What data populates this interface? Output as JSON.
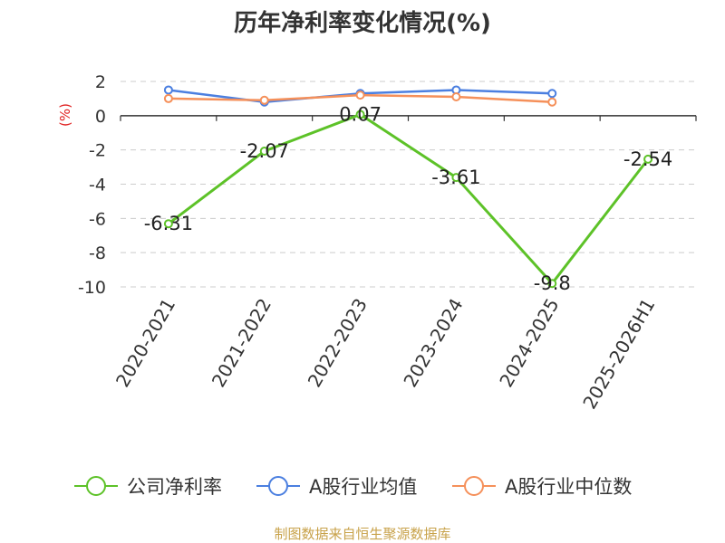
{
  "chart_data": {
    "type": "line",
    "title": "历年净利率变化情况(%)",
    "ylabel": "(%)",
    "ylim": [
      -10,
      2
    ],
    "yticks": [
      2,
      0,
      -2,
      -4,
      -6,
      -8,
      -10
    ],
    "grid": true,
    "legend_position": "bottom",
    "categories": [
      "2020-2021",
      "2021-2022",
      "2022-2023",
      "2023-2024",
      "2024-2025",
      "2025-2026H1"
    ],
    "series": [
      {
        "name": "公司净利率",
        "color": "#5dc228",
        "values": [
          -6.31,
          -2.07,
          0.07,
          -3.61,
          -9.8,
          -2.54
        ],
        "labels": [
          "-6.31",
          "-2.07",
          "0.07",
          "-3.61",
          "-9.8",
          "-2.54"
        ]
      },
      {
        "name": "A股行业均值",
        "color": "#4b7fe0",
        "values": [
          1.5,
          0.8,
          1.3,
          1.5,
          1.3,
          null
        ]
      },
      {
        "name": "A股行业中位数",
        "color": "#f5905a",
        "values": [
          1.0,
          0.9,
          1.2,
          1.1,
          0.8,
          null
        ]
      }
    ]
  },
  "footer": {
    "source": "制图数据来自恒生聚源数据库"
  }
}
